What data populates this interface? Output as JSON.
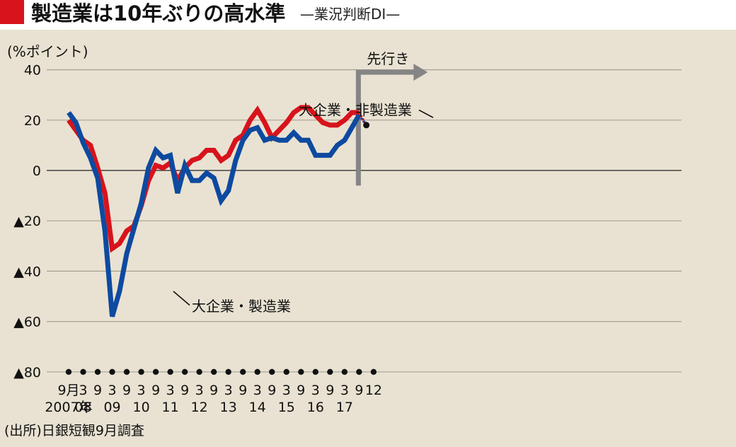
{
  "header": {
    "title": "製造業は10年ぶりの高水準",
    "subtitle": "—業況判断DI—"
  },
  "colors": {
    "accent": "#d8131b",
    "series_nonmfg": "#d8131b",
    "series_mfg": "#0d4aa0",
    "forecast_marker": "#858585",
    "background": "#e9e2d2"
  },
  "chart_data": {
    "type": "line",
    "unit_label": "(%ポイント)",
    "ylim": [
      -80,
      40
    ],
    "ytick_labels": [
      "40",
      "20",
      "0",
      "▲20",
      "▲40",
      "▲60",
      "▲80"
    ],
    "ytick_values": [
      40,
      20,
      0,
      -20,
      -40,
      -60,
      -80
    ],
    "grid": true,
    "xtick_labels": [
      "9月",
      "3",
      "9",
      "3",
      "9",
      "3",
      "9",
      "3",
      "9",
      "3",
      "9",
      "3",
      "9",
      "3",
      "9",
      "3",
      "9",
      "3",
      "9",
      "3",
      "9",
      "12"
    ],
    "year_labels": [
      {
        "text": "2007年",
        "index": 0
      },
      {
        "text": "08",
        "index": 1
      },
      {
        "text": "09",
        "index": 3
      },
      {
        "text": "10",
        "index": 5
      },
      {
        "text": "11",
        "index": 7
      },
      {
        "text": "12",
        "index": 9
      },
      {
        "text": "13",
        "index": 11
      },
      {
        "text": "14",
        "index": 13
      },
      {
        "text": "15",
        "index": 15
      },
      {
        "text": "16",
        "index": 17
      },
      {
        "text": "17",
        "index": 19
      }
    ],
    "forecast_label": "先行き",
    "forecast_start_index": 40,
    "series": [
      {
        "name": "大企業・非製造業",
        "values": [
          20,
          16,
          12,
          10,
          1,
          -9,
          -31,
          -29,
          -24,
          -22,
          -14,
          -4,
          2,
          1,
          3,
          -4,
          1,
          4,
          5,
          8,
          8,
          4,
          6,
          12,
          14,
          20,
          24,
          19,
          13,
          16,
          19,
          23,
          25,
          25,
          22,
          19,
          18,
          18,
          20,
          23,
          23
        ],
        "forecast": 18
      },
      {
        "name": "大企業・製造業",
        "values": [
          23,
          19,
          11,
          5,
          -3,
          -24,
          -58,
          -48,
          -33,
          -23,
          -13,
          1,
          8,
          5,
          6,
          -9,
          2,
          -4,
          -4,
          -1,
          -3,
          -12,
          -8,
          4,
          12,
          16,
          17,
          12,
          13,
          12,
          12,
          15,
          12,
          12,
          6,
          6,
          6,
          10,
          12,
          17,
          22
        ],
        "forecast": 18
      }
    ],
    "source": "(出所)日銀短観9月調査"
  }
}
